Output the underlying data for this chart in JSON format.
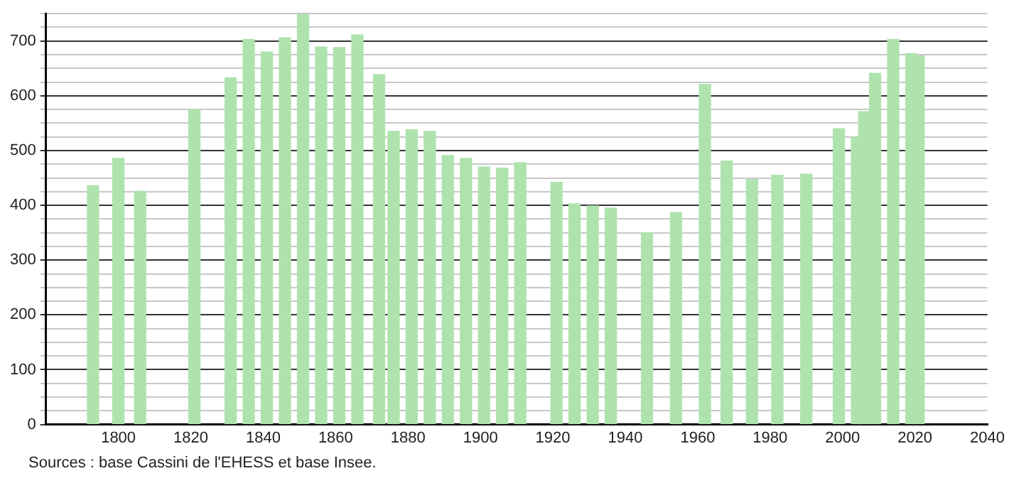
{
  "chart_data": {
    "type": "bar",
    "x": [
      1793,
      1800,
      1806,
      1821,
      1831,
      1836,
      1841,
      1846,
      1851,
      1856,
      1861,
      1866,
      1872,
      1876,
      1881,
      1886,
      1891,
      1896,
      1901,
      1906,
      1911,
      1921,
      1926,
      1931,
      1936,
      1946,
      1954,
      1962,
      1968,
      1975,
      1982,
      1990,
      1999,
      2004,
      2006,
      2009,
      2014,
      2019,
      2021
    ],
    "values": [
      436,
      486,
      426,
      575,
      633,
      703,
      680,
      706,
      748,
      689,
      688,
      711,
      639,
      535,
      538,
      535,
      491,
      486,
      470,
      468,
      478,
      442,
      403,
      399,
      395,
      350,
      387,
      621,
      481,
      447,
      455,
      457,
      540,
      524,
      571,
      641,
      703,
      677,
      673
    ],
    "color": "#aee3ae",
    "xlim": [
      1780,
      2040
    ],
    "xticks": [
      1800,
      1820,
      1840,
      1860,
      1880,
      1900,
      1920,
      1940,
      1960,
      1980,
      2000,
      2020,
      2040
    ],
    "ylim": [
      0,
      750
    ],
    "yticks": [
      0,
      {
        "value": 25,
        "label": null
      },
      {
        "value": 50,
        "label": null
      },
      {
        "value": 75,
        "label": null
      },
      100,
      {
        "value": 125,
        "label": null
      },
      {
        "value": 150,
        "label": null
      },
      {
        "value": 175,
        "label": null
      },
      200,
      {
        "value": 225,
        "label": null
      },
      {
        "value": 250,
        "label": null
      },
      {
        "value": 275,
        "label": null
      },
      300,
      {
        "value": 325,
        "label": null
      },
      {
        "value": 350,
        "label": null
      },
      {
        "value": 375,
        "label": null
      },
      400,
      {
        "value": 425,
        "label": null
      },
      {
        "value": 450,
        "label": null
      },
      {
        "value": 475,
        "label": null
      },
      500,
      {
        "value": 525,
        "label": null
      },
      {
        "value": 550,
        "label": null
      },
      {
        "value": 575,
        "label": null
      },
      600,
      {
        "value": 625,
        "label": null
      },
      {
        "value": 650,
        "label": null
      },
      {
        "value": 675,
        "label": null
      },
      700,
      {
        "value": 725,
        "label": null
      },
      {
        "value": 750,
        "label": null
      }
    ],
    "grid": "y",
    "annotations": [
      "Sources : base Cassini de l'EHESS et base Insee."
    ]
  }
}
